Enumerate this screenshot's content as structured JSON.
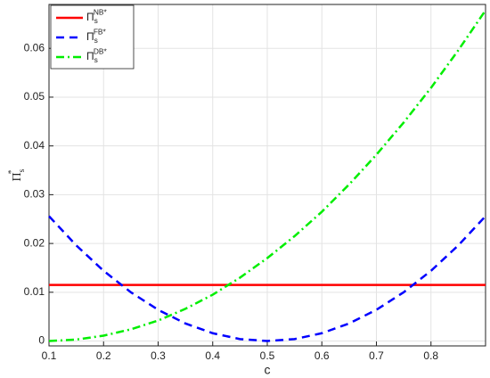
{
  "chart_data": {
    "type": "line",
    "xlabel": "c",
    "ylabel": "Π_s^{*}",
    "x": [
      0.1,
      0.15,
      0.2,
      0.25,
      0.3,
      0.35,
      0.4,
      0.45,
      0.5,
      0.55,
      0.6,
      0.65,
      0.7,
      0.75,
      0.8,
      0.85,
      0.9
    ],
    "series": [
      {
        "name": "Π_s^{NB*}",
        "color": "#ff0000",
        "dash": "solid",
        "values": [
          0.0115,
          0.0115,
          0.0115,
          0.0115,
          0.0115,
          0.0115,
          0.0115,
          0.0115,
          0.0115,
          0.0115,
          0.0115,
          0.0115,
          0.0115,
          0.0115,
          0.0115,
          0.0115,
          0.0115
        ]
      },
      {
        "name": "Π_s^{FB*}",
        "color": "#0000ff",
        "dash": "dashed",
        "values": [
          0.0256,
          0.0196,
          0.0144,
          0.01,
          0.0064,
          0.0036,
          0.0016,
          0.0004,
          0,
          0.0004,
          0.0016,
          0.0036,
          0.0064,
          0.01,
          0.0144,
          0.0196,
          0.0256
        ]
      },
      {
        "name": "Π_s^{DB*}",
        "color": "#00ee00",
        "dash": "dashdot",
        "values": [
          0,
          0.0003,
          0.0011,
          0.0024,
          0.0042,
          0.0066,
          0.0095,
          0.013,
          0.017,
          0.0215,
          0.0265,
          0.0321,
          0.0382,
          0.0448,
          0.0519,
          0.0596,
          0.0678
        ]
      }
    ],
    "xlim": [
      0.1,
      0.9
    ],
    "xticks": [
      0.1,
      0.2,
      0.3,
      0.4,
      0.5,
      0.6,
      0.7,
      0.8
    ],
    "ylim": [
      -0.001,
      0.069
    ],
    "yticks": [
      0,
      0.01,
      0.02,
      0.03,
      0.04,
      0.05,
      0.06
    ],
    "grid": true,
    "legend": "top-left"
  }
}
